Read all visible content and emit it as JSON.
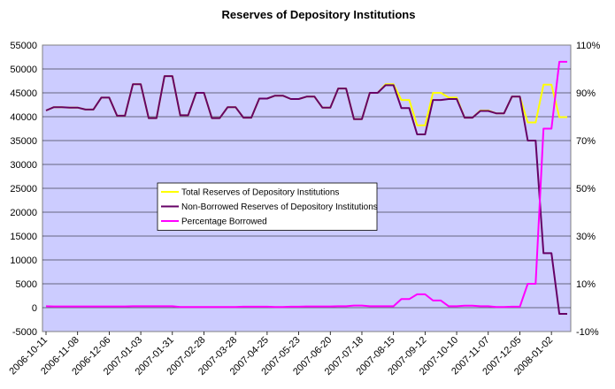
{
  "chart_data": {
    "type": "line",
    "title": "Reserves of Depository Institutions",
    "xlabel": "",
    "ylabel": "",
    "ylim": [
      -5000,
      55000
    ],
    "yticks": [
      -5000,
      0,
      5000,
      10000,
      15000,
      20000,
      25000,
      30000,
      35000,
      40000,
      45000,
      50000,
      55000
    ],
    "y2lim": [
      -10,
      110
    ],
    "y2ticks": [
      "-10%",
      "10%",
      "30%",
      "50%",
      "70%",
      "90%",
      "110%"
    ],
    "y2tick_values": [
      -10,
      10,
      30,
      50,
      70,
      90,
      110
    ],
    "xticks": [
      "2006-10-11",
      "2006-11-08",
      "2006-12-06",
      "2007-01-03",
      "2007-01-31",
      "2007-02-28",
      "2007-03-28",
      "2007-04-25",
      "2007-05-23",
      "2007-06-20",
      "2007-07-18",
      "2007-08-15",
      "2007-09-12",
      "2007-10-10",
      "2007-11-07",
      "2007-12-05",
      "2008-01-02"
    ],
    "grid": true,
    "legend_placement": "center-left",
    "x_start": "2006-10-11",
    "x_step_days": 7,
    "series": [
      {
        "name": "Total Reserves of Depository Institutions",
        "axis": "left",
        "color": "#ffff00",
        "values": [
          41300,
          42000,
          42000,
          41900,
          41900,
          41500,
          41500,
          44000,
          44000,
          40200,
          40200,
          46800,
          46800,
          39700,
          39700,
          48500,
          48500,
          40300,
          40300,
          45000,
          45000,
          39700,
          39700,
          42000,
          42000,
          39800,
          39800,
          43800,
          43800,
          44400,
          44400,
          43700,
          43700,
          44200,
          44200,
          41900,
          41900,
          45900,
          45900,
          39500,
          39500,
          45000,
          45000,
          46800,
          46800,
          43500,
          43500,
          38200,
          38200,
          45000,
          45000,
          44000,
          44000,
          39800,
          39800,
          41300,
          41300,
          40700,
          40700,
          44200,
          44200,
          38800,
          38800,
          46700,
          46700,
          39900,
          39900
        ]
      },
      {
        "name": "Non-Borrowed Reserves of Depository Institutions",
        "axis": "left",
        "color": "#660066",
        "values": [
          41300,
          42000,
          42000,
          41900,
          41900,
          41500,
          41500,
          44000,
          44000,
          40200,
          40200,
          46800,
          46800,
          39700,
          39700,
          48500,
          48500,
          40300,
          40300,
          45000,
          45000,
          39700,
          39700,
          42000,
          42000,
          39800,
          39800,
          43800,
          43800,
          44400,
          44400,
          43700,
          43700,
          44200,
          44200,
          41900,
          41900,
          45900,
          45900,
          39500,
          39500,
          45000,
          45000,
          46600,
          46600,
          41800,
          41800,
          36300,
          36300,
          43500,
          43500,
          43700,
          43700,
          39800,
          39800,
          41200,
          41200,
          40700,
          40700,
          44200,
          44200,
          35000,
          35000,
          11400,
          11400,
          -1300,
          -1300
        ]
      },
      {
        "name": "Percentage Borrowed",
        "axis": "right",
        "color": "#ff00ff",
        "values": [
          0.6,
          0.5,
          0.5,
          0.5,
          0.5,
          0.5,
          0.5,
          0.5,
          0.5,
          0.5,
          0.5,
          0.6,
          0.6,
          0.6,
          0.6,
          0.6,
          0.6,
          0.3,
          0.3,
          0.3,
          0.3,
          0.3,
          0.3,
          0.3,
          0.3,
          0.4,
          0.4,
          0.4,
          0.4,
          0.3,
          0.3,
          0.4,
          0.4,
          0.5,
          0.5,
          0.5,
          0.5,
          0.6,
          0.6,
          0.9,
          0.9,
          0.6,
          0.6,
          0.6,
          0.6,
          3.6,
          3.6,
          5.6,
          5.6,
          3.0,
          3.0,
          0.6,
          0.6,
          0.8,
          0.8,
          0.6,
          0.6,
          0.3,
          0.3,
          0.4,
          0.4,
          10.0,
          10.0,
          75.0,
          75.0,
          103.0,
          103.0
        ]
      }
    ]
  }
}
